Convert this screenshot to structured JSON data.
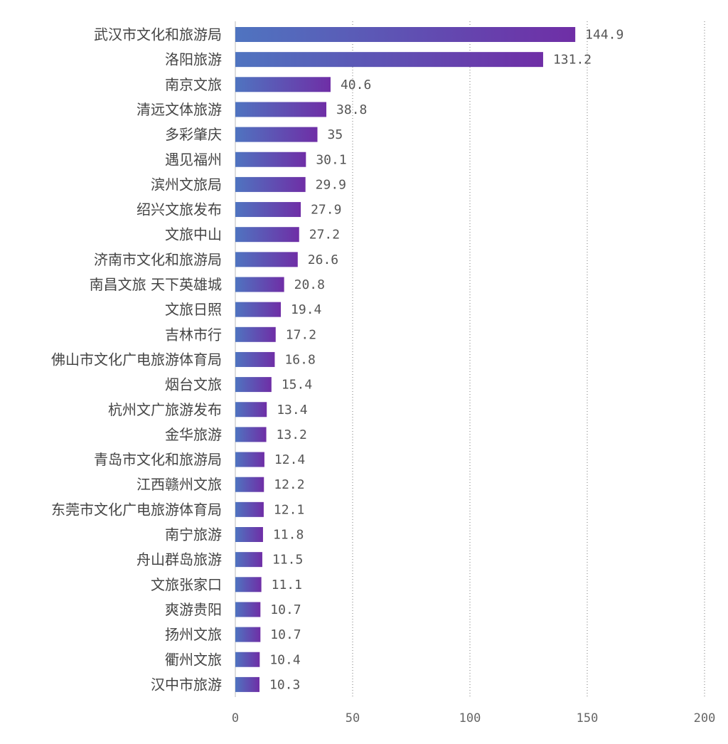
{
  "chart_data": {
    "type": "bar",
    "orientation": "horizontal",
    "title": "",
    "xlabel": "",
    "ylabel": "",
    "xlim": [
      0,
      200
    ],
    "x_ticks": [
      0,
      50,
      100,
      150,
      200
    ],
    "grid": "vertical dotted",
    "legend": "none",
    "colors": {
      "bar_start": "#4f74c0",
      "bar_end": "#6f2ea6",
      "grid": "#777777",
      "text": "#444444"
    },
    "categories": [
      "武汉市文化和旅游局",
      "洛阳旅游",
      "南京文旅",
      "清远文体旅游",
      "多彩肇庆",
      "遇见福州",
      "滨州文旅局",
      "绍兴文旅发布",
      "文旅中山",
      "济南市文化和旅游局",
      "南昌文旅 天下英雄城",
      "文旅日照",
      "吉林市行",
      "佛山市文化广电旅游体育局",
      "烟台文旅",
      "杭州文广旅游发布",
      "金华旅游",
      "青岛市文化和旅游局",
      "江西赣州文旅",
      "东莞市文化广电旅游体育局",
      "南宁旅游",
      "舟山群岛旅游",
      "文旅张家口",
      "爽游贵阳",
      "扬州文旅",
      "衢州文旅",
      "汉中市旅游"
    ],
    "values": [
      144.9,
      131.2,
      40.6,
      38.8,
      35,
      30.1,
      29.9,
      27.9,
      27.2,
      26.6,
      20.8,
      19.4,
      17.2,
      16.8,
      15.4,
      13.4,
      13.2,
      12.4,
      12.2,
      12.1,
      11.8,
      11.5,
      11.1,
      10.7,
      10.7,
      10.4,
      10.3
    ],
    "value_labels": [
      "144.9",
      "131.2",
      "40.6",
      "38.8",
      "35",
      "30.1",
      "29.9",
      "27.9",
      "27.2",
      "26.6",
      "20.8",
      "19.4",
      "17.2",
      "16.8",
      "15.4",
      "13.4",
      "13.2",
      "12.4",
      "12.2",
      "12.1",
      "11.8",
      "11.5",
      "11.1",
      "10.7",
      "10.7",
      "10.4",
      "10.3"
    ]
  }
}
